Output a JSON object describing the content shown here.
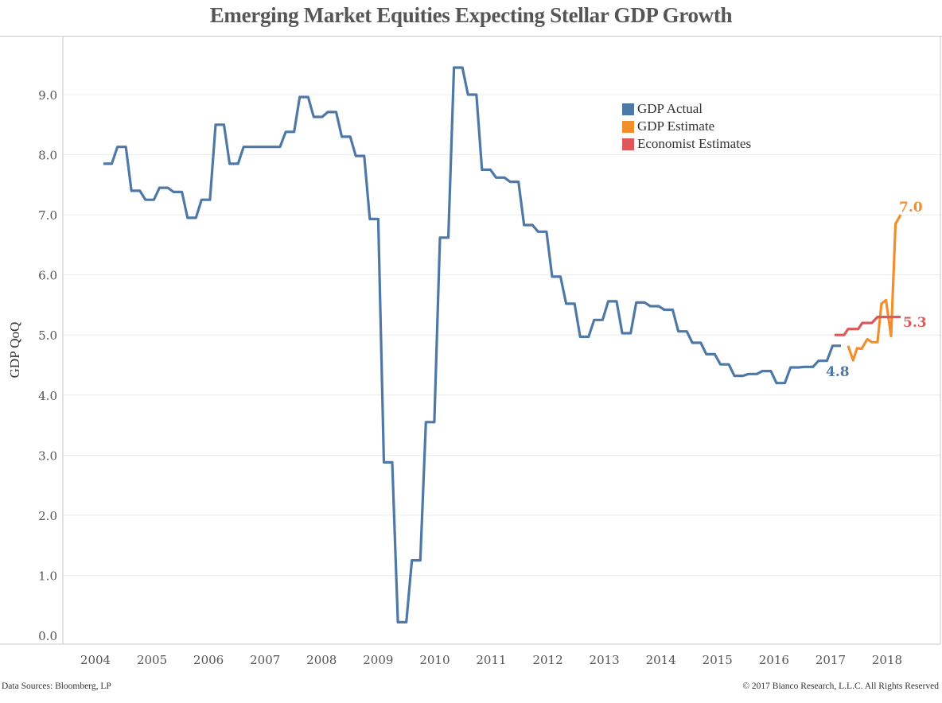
{
  "title": "Emerging Market Equities Expecting Stellar GDP Growth",
  "footer": {
    "source": "Data Sources: Bloomberg, LP",
    "copyright": "© 2017 Bianco Research, L.L.C. All Rights Reserved"
  },
  "colors": {
    "actual": "#4e79a7",
    "estimate": "#f28e2b",
    "economist": "#e15759",
    "grid": "#ececec",
    "axis": "#c8c8c8"
  },
  "chart_data": {
    "type": "line",
    "title": "Emerging Market Equities Expecting Stellar GDP Growth",
    "xlabel": "",
    "ylabel": "GDP QoQ",
    "xlim": [
      2003.72,
      2018.8
    ],
    "ylim": [
      0,
      9.6
    ],
    "grid": true,
    "legend": "top-right",
    "x_ticks": [
      "2004",
      "2005",
      "2006",
      "2007",
      "2008",
      "2009",
      "2010",
      "2011",
      "2012",
      "2013",
      "2014",
      "2015",
      "2016",
      "2017",
      "2018"
    ],
    "y_ticks": [
      "0.0",
      "1.0",
      "2.0",
      "3.0",
      "4.0",
      "5.0",
      "6.0",
      "7.0",
      "8.0",
      "9.0"
    ],
    "series": [
      {
        "name": "GDP Actual",
        "color_key": "actual",
        "quarter_start": 2004.14,
        "quarter_step": 0.248,
        "values": [
          7.85,
          8.13,
          7.4,
          7.25,
          7.45,
          7.38,
          6.95,
          7.25,
          8.5,
          7.85,
          8.13,
          8.13,
          8.13,
          8.38,
          8.96,
          8.63,
          8.71,
          8.3,
          7.98,
          6.93,
          2.88,
          0.22,
          1.25,
          3.55,
          6.62,
          9.45,
          9.0,
          7.75,
          7.62,
          7.55,
          6.83,
          6.72,
          5.97,
          5.52,
          4.97,
          5.25,
          5.56,
          5.03,
          5.54,
          5.48,
          5.42,
          5.06,
          4.87,
          4.68,
          4.51,
          4.32,
          4.35,
          4.4,
          4.2,
          4.46,
          4.47,
          4.57,
          4.82
        ],
        "end_label": "4.8"
      },
      {
        "name": "GDP Estimate",
        "color_key": "estimate",
        "points": [
          [
            2017.31,
            4.82
          ],
          [
            2017.4,
            4.58
          ],
          [
            2017.47,
            4.78
          ],
          [
            2017.55,
            4.77
          ],
          [
            2017.65,
            4.93
          ],
          [
            2017.73,
            4.88
          ],
          [
            2017.83,
            4.88
          ],
          [
            2017.9,
            5.52
          ],
          [
            2017.98,
            5.58
          ],
          [
            2018.07,
            4.98
          ],
          [
            2018.15,
            6.85
          ],
          [
            2018.24,
            7.0
          ]
        ],
        "end_label": "7.0"
      },
      {
        "name": "Economist Estimates",
        "color_key": "economist",
        "points": [
          [
            2017.07,
            5.0
          ],
          [
            2017.24,
            5.0
          ],
          [
            2017.31,
            5.1
          ],
          [
            2017.49,
            5.1
          ],
          [
            2017.56,
            5.2
          ],
          [
            2017.73,
            5.2
          ],
          [
            2017.83,
            5.3
          ],
          [
            2018.24,
            5.3
          ]
        ],
        "end_label": "5.3"
      }
    ]
  }
}
